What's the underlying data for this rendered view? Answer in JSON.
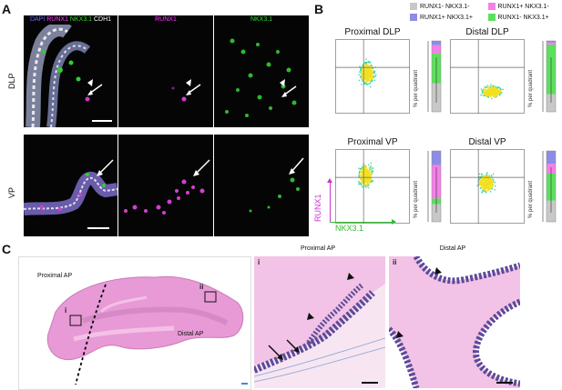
{
  "panel_a": {
    "letter": "A",
    "rows": [
      "DLP",
      "VP"
    ],
    "channel_titles": {
      "merged": [
        {
          "text": "DAPI",
          "color": "#6b6bff"
        },
        {
          "text": "RUNX1",
          "color": "#ff3cff"
        },
        {
          "text": "NKX3.1",
          "color": "#33dd33"
        },
        {
          "text": "CDH1",
          "color": "#ffffff"
        }
      ],
      "runx1": "RUNX1",
      "nkx31": "NKX3.1"
    },
    "colors": {
      "runx1": "#e040e0",
      "nkx31": "#33cc33",
      "dapi": "#5555ff"
    }
  },
  "panel_b": {
    "letter": "B",
    "legend": [
      {
        "label": "RUNX1- NKX3.1-",
        "color": "#c8c8c8"
      },
      {
        "label": "RUNX1+ NKX3.1-",
        "color": "#f580e8"
      },
      {
        "label": "RUNX1+ NKX3.1+",
        "color": "#8c8ce8"
      },
      {
        "label": "RUNX1- NKX3.1+",
        "color": "#5de05d"
      }
    ],
    "plots": [
      {
        "title": "Proximal DLP"
      },
      {
        "title": "Distal DLP"
      },
      {
        "title": "Proximal VP"
      },
      {
        "title": "Distal VP"
      }
    ],
    "bar_ylabel": "% per quadrant",
    "axis_y": "RUNX1",
    "axis_x": "NKX3.1",
    "axis_colors": {
      "y": "#cc33cc",
      "x": "#33bb33"
    },
    "chart_data": {
      "type": "bar",
      "stacked": true,
      "categories": [
        "Proximal DLP",
        "Distal DLP",
        "Proximal VP",
        "Distal VP"
      ],
      "series": [
        {
          "name": "RUNX1- NKX3.1-",
          "values": [
            40,
            25,
            25,
            30
          ]
        },
        {
          "name": "RUNX1- NKX3.1+",
          "values": [
            42,
            70,
            8,
            38
          ]
        },
        {
          "name": "RUNX1+ NKX3.1-",
          "values": [
            12,
            3,
            47,
            14
          ]
        },
        {
          "name": "RUNX1+ NKX3.1+",
          "values": [
            6,
            2,
            20,
            18
          ]
        }
      ],
      "ylim": [
        0,
        100
      ]
    }
  },
  "panel_c": {
    "letter": "C",
    "overview_labels": {
      "proximal": "Proximal AP",
      "distal": "Distal AP",
      "i": "i",
      "ii": "ii"
    },
    "zoom_titles": [
      "Proximal AP",
      "Distal AP"
    ],
    "zoom_roman": [
      "i",
      "ii"
    ],
    "colors": {
      "tissue": "#e79ad6",
      "background": "#f7dff0",
      "nuclei": "#5c4a9a"
    }
  }
}
